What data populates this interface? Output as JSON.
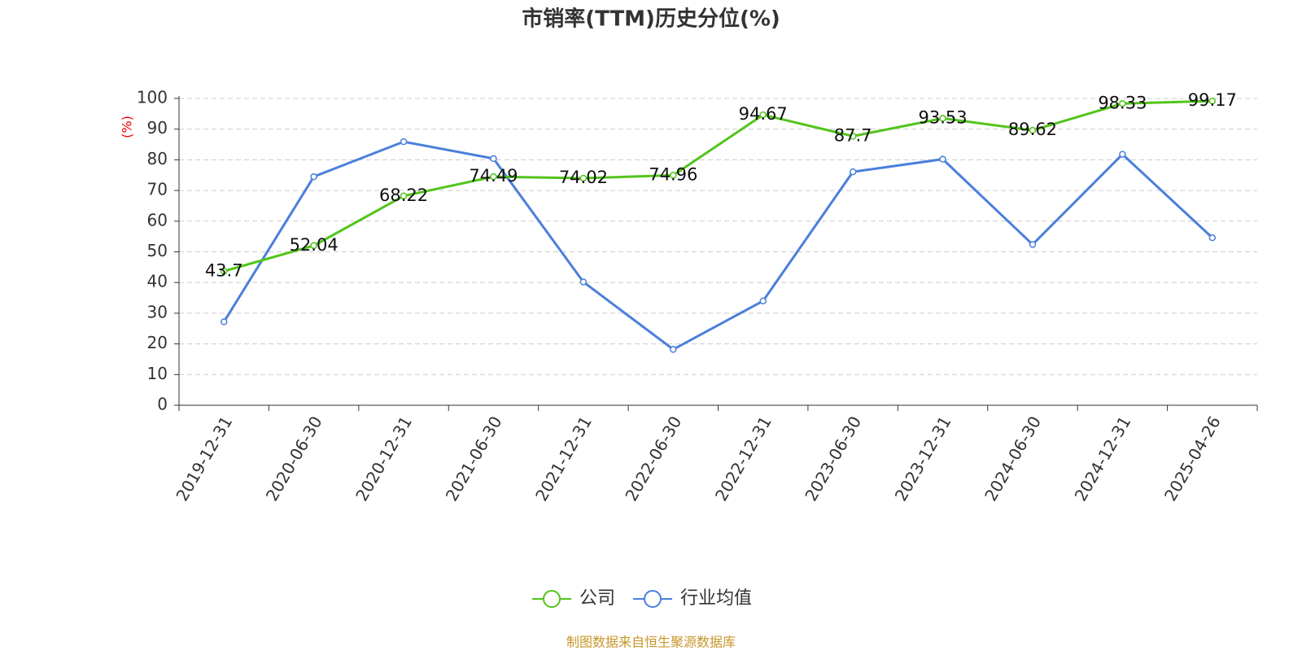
{
  "chart_data": {
    "type": "line",
    "title": "市销率(TTM)历史分位(%)",
    "ylabel": "(%)",
    "source": "制图数据来自恒生聚源数据库",
    "categories": [
      "2019-12-31",
      "2020-06-30",
      "2020-12-31",
      "2021-06-30",
      "2021-12-31",
      "2022-06-30",
      "2022-12-31",
      "2023-06-30",
      "2023-12-31",
      "2024-06-30",
      "2024-12-31",
      "2025-04-26"
    ],
    "series": [
      {
        "name": "公司",
        "color": "#52c41a",
        "data_labels": true,
        "values": [
          43.7,
          52.04,
          68.22,
          74.49,
          74.02,
          74.96,
          94.67,
          87.7,
          93.53,
          89.62,
          98.33,
          99.17
        ]
      },
      {
        "name": "行业均值",
        "color": "#4a7fdc",
        "data_labels": false,
        "values": [
          27.2,
          74.5,
          85.9,
          80.4,
          40.2,
          18.2,
          34.0,
          76.1,
          80.2,
          52.4,
          81.8,
          54.6
        ]
      }
    ],
    "ylim": [
      0,
      100
    ],
    "yticks": [
      0,
      10,
      20,
      30,
      40,
      50,
      60,
      70,
      80,
      90,
      100
    ],
    "grid": true
  }
}
